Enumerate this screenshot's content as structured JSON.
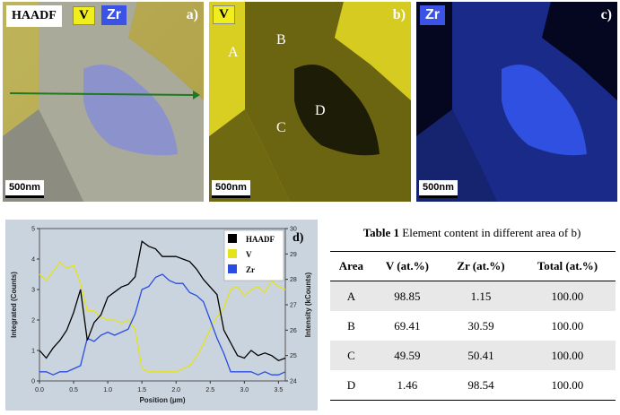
{
  "panels": {
    "a": {
      "letter": "a)",
      "tags": {
        "haadf": "HAADF",
        "v": "V",
        "zr": "Zr"
      },
      "scalebar": "500nm"
    },
    "b": {
      "letter": "b)",
      "tag": "V",
      "scalebar": "500nm",
      "areas": [
        "A",
        "B",
        "C",
        "D"
      ]
    },
    "c": {
      "letter": "c)",
      "tag": "Zr",
      "scalebar": "500nm"
    }
  },
  "colors": {
    "vanadium": "#e6e21c",
    "zirconium": "#2b4ce0",
    "haadf": "#000000",
    "arrow": "#1f7a1f",
    "chart_bg": "#c9d4df"
  },
  "chart_data": {
    "type": "line",
    "panel_letter": "d)",
    "xlabel": "Position (μm)",
    "ylabel_left": "Integrated (Counts)",
    "ylabel_right": "Intensity (kCounts)",
    "xlim": [
      0,
      3.6
    ],
    "ylim_left": [
      0,
      5
    ],
    "ylim_right": [
      24,
      30
    ],
    "x_ticks": [
      "0.0",
      "0.5",
      "1.0",
      "1.5",
      "2.0",
      "2.5",
      "3.0",
      "3.5"
    ],
    "y_ticks_left": [
      "0",
      "1",
      "2",
      "3",
      "4",
      "5"
    ],
    "y_ticks_right": [
      "24",
      "25",
      "26",
      "27",
      "28",
      "29",
      "30"
    ],
    "legend": [
      "HAADF",
      "V",
      "Zr"
    ],
    "legend_placement": "top-right",
    "x": [
      0.0,
      0.1,
      0.2,
      0.3,
      0.4,
      0.5,
      0.6,
      0.7,
      0.8,
      0.9,
      1.0,
      1.1,
      1.2,
      1.3,
      1.4,
      1.5,
      1.6,
      1.7,
      1.8,
      1.9,
      2.0,
      2.1,
      2.2,
      2.3,
      2.4,
      2.5,
      2.6,
      2.7,
      2.8,
      2.9,
      3.0,
      3.1,
      3.2,
      3.3,
      3.4,
      3.5,
      3.6
    ],
    "series": [
      {
        "name": "HAADF",
        "axis": "right",
        "values": [
          25.2,
          24.9,
          25.3,
          25.6,
          26.0,
          26.7,
          27.6,
          25.6,
          26.3,
          26.6,
          27.3,
          27.5,
          27.7,
          27.8,
          28.1,
          29.5,
          29.3,
          29.2,
          28.9,
          28.9,
          28.9,
          28.8,
          28.7,
          28.4,
          28.0,
          27.7,
          27.4,
          26.0,
          25.5,
          25.0,
          24.9,
          25.2,
          25.0,
          25.1,
          25.0,
          24.8,
          24.9
        ]
      },
      {
        "name": "V",
        "axis": "left",
        "values": [
          3.5,
          3.3,
          3.6,
          3.9,
          3.7,
          3.8,
          3.2,
          2.3,
          2.3,
          2.1,
          2.0,
          2.0,
          1.9,
          2.0,
          1.7,
          0.4,
          0.3,
          0.3,
          0.3,
          0.3,
          0.3,
          0.4,
          0.5,
          0.8,
          1.2,
          1.7,
          2.1,
          2.4,
          3.0,
          3.1,
          2.8,
          3.0,
          3.1,
          2.9,
          3.3,
          3.1,
          3.0
        ]
      },
      {
        "name": "Zr",
        "axis": "left",
        "values": [
          0.3,
          0.3,
          0.2,
          0.3,
          0.3,
          0.4,
          0.5,
          1.4,
          1.3,
          1.5,
          1.6,
          1.5,
          1.6,
          1.7,
          2.2,
          3.0,
          3.1,
          3.4,
          3.5,
          3.3,
          3.2,
          3.2,
          2.9,
          2.8,
          2.6,
          2.0,
          1.4,
          0.9,
          0.3,
          0.3,
          0.3,
          0.3,
          0.2,
          0.3,
          0.2,
          0.2,
          0.3
        ]
      }
    ]
  },
  "table": {
    "caption_label": "Table 1",
    "caption_text": " Element content in different area of b)",
    "headers": [
      "Area",
      "V (at.%)",
      "Zr (at.%)",
      "Total (at.%)"
    ],
    "rows": [
      [
        "A",
        "98.85",
        "1.15",
        "100.00"
      ],
      [
        "B",
        "69.41",
        "30.59",
        "100.00"
      ],
      [
        "C",
        "49.59",
        "50.41",
        "100.00"
      ],
      [
        "D",
        "1.46",
        "98.54",
        "100.00"
      ]
    ]
  }
}
